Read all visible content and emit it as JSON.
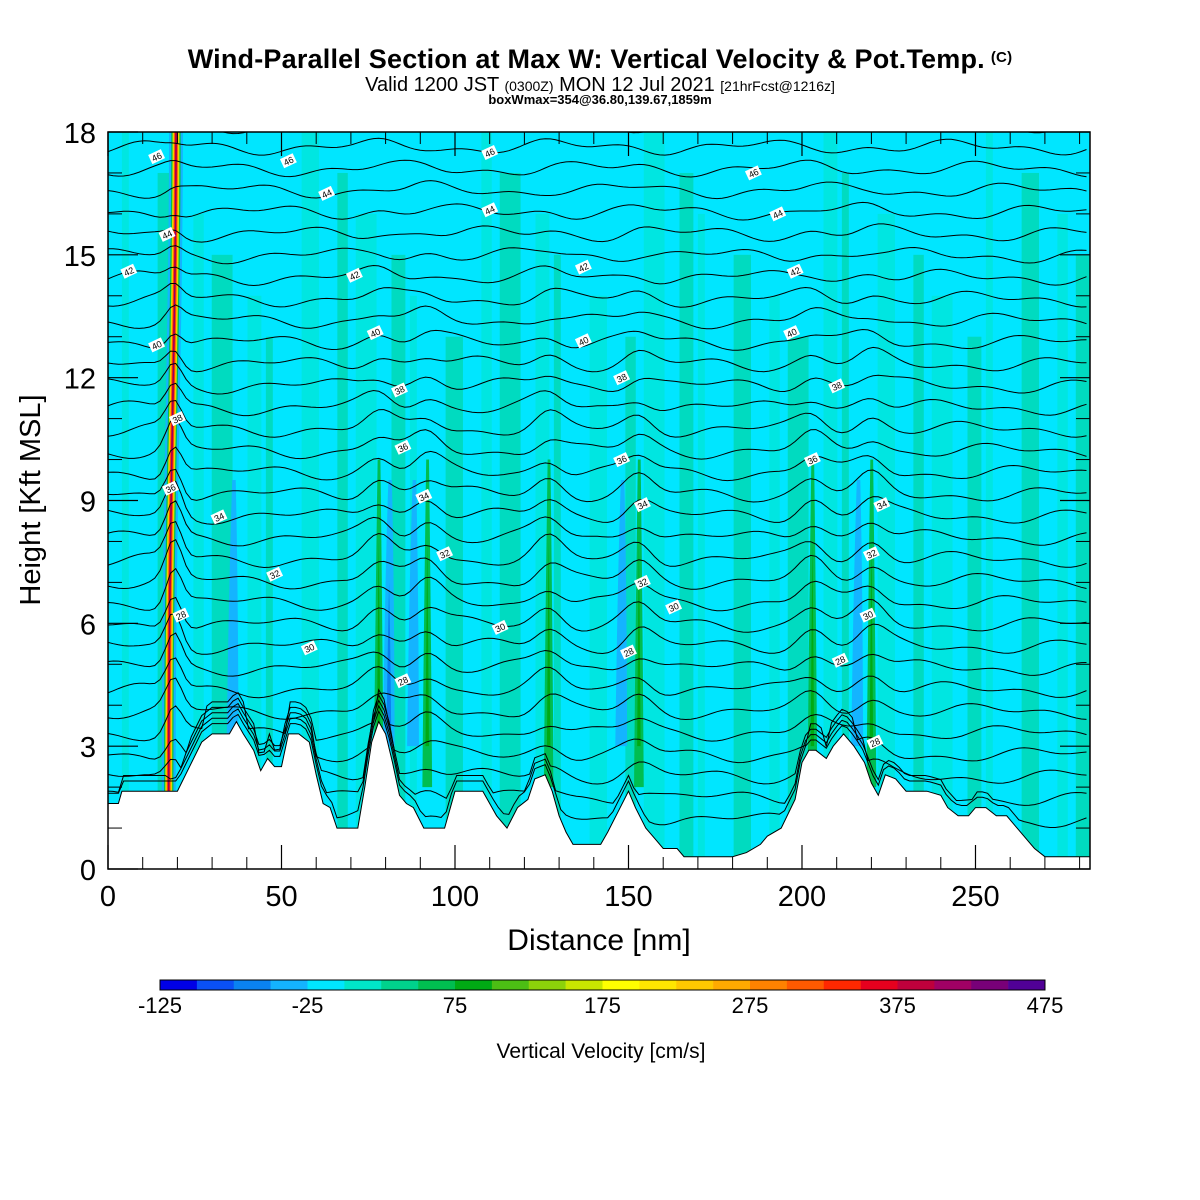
{
  "title": {
    "main": "Wind-Parallel Section at Max W: Vertical Velocity & Pot.Temp.",
    "copyright": "(C)",
    "valid_prefix": "Valid 1200 JST",
    "utc": "(0300Z)",
    "valid_date": "MON 12 Jul 2021",
    "forecast": "[21hrFcst@1216z]",
    "box": "boxWmax=354@36.80,139.67,1859m"
  },
  "chart_data": {
    "type": "heatmap",
    "xlabel": "Distance [nm]",
    "ylabel": "Height [Kft MSL]",
    "xlim": [
      0,
      283
    ],
    "ylim": [
      0,
      18
    ],
    "x_ticks": [
      0,
      50,
      100,
      150,
      200,
      250
    ],
    "y_ticks": [
      0,
      3,
      6,
      9,
      12,
      15,
      18
    ],
    "colorbar": {
      "label": "Vertical Velocity [cm/s]",
      "tick_labels": [
        "-125",
        "-25",
        "75",
        "175",
        "275",
        "375",
        "475"
      ],
      "colors": [
        "#0000e6",
        "#0a50f5",
        "#0a82f0",
        "#14b4ff",
        "#00e6ff",
        "#00e6c8",
        "#00d28c",
        "#00be50",
        "#00aa14",
        "#4cbe14",
        "#8cd20a",
        "#c8e600",
        "#ffff00",
        "#ffe600",
        "#ffc800",
        "#ffaa00",
        "#ff8200",
        "#ff5a00",
        "#ff2800",
        "#e6001e",
        "#be003c",
        "#a00064",
        "#780078",
        "#500096"
      ]
    },
    "terrain_kft": [
      [
        0,
        1.6
      ],
      [
        3,
        1.6
      ],
      [
        4,
        1.9
      ],
      [
        16,
        1.9
      ],
      [
        18,
        1.9
      ],
      [
        20,
        1.9
      ],
      [
        27,
        3.1
      ],
      [
        30,
        3.3
      ],
      [
        35,
        3.3
      ],
      [
        37,
        3.6
      ],
      [
        39,
        3.3
      ],
      [
        42,
        2.9
      ],
      [
        44,
        2.4
      ],
      [
        46,
        2.7
      ],
      [
        48,
        2.5
      ],
      [
        50,
        2.5
      ],
      [
        52,
        3.3
      ],
      [
        55,
        3.3
      ],
      [
        58,
        3.1
      ],
      [
        60,
        2.3
      ],
      [
        62,
        1.6
      ],
      [
        64,
        1.5
      ],
      [
        66,
        1.0
      ],
      [
        72,
        1.0
      ],
      [
        74,
        2.0
      ],
      [
        76,
        3.1
      ],
      [
        78,
        3.6
      ],
      [
        80,
        3.3
      ],
      [
        82,
        2.6
      ],
      [
        84,
        1.8
      ],
      [
        86,
        1.6
      ],
      [
        88,
        1.5
      ],
      [
        91,
        1.0
      ],
      [
        97,
        1.0
      ],
      [
        100,
        1.9
      ],
      [
        108,
        1.9
      ],
      [
        112,
        1.3
      ],
      [
        115,
        1.0
      ],
      [
        118,
        1.5
      ],
      [
        121,
        1.7
      ],
      [
        123,
        2.2
      ],
      [
        126,
        2.3
      ],
      [
        128,
        1.9
      ],
      [
        130,
        1.3
      ],
      [
        132,
        0.9
      ],
      [
        134,
        0.6
      ],
      [
        142,
        0.6
      ],
      [
        144,
        0.9
      ],
      [
        147,
        1.4
      ],
      [
        150,
        1.9
      ],
      [
        152,
        1.5
      ],
      [
        155,
        1.0
      ],
      [
        158,
        0.7
      ],
      [
        160,
        0.5
      ],
      [
        164,
        0.5
      ],
      [
        166,
        0.3
      ],
      [
        174,
        0.3
      ],
      [
        180,
        0.3
      ],
      [
        184,
        0.4
      ],
      [
        188,
        0.6
      ],
      [
        190,
        0.8
      ],
      [
        194,
        1.0
      ],
      [
        198,
        1.7
      ],
      [
        200,
        2.6
      ],
      [
        202,
        2.9
      ],
      [
        204,
        2.9
      ],
      [
        207,
        2.7
      ],
      [
        209,
        3.0
      ],
      [
        212,
        3.3
      ],
      [
        215,
        3.0
      ],
      [
        218,
        2.6
      ],
      [
        220,
        2.1
      ],
      [
        222,
        1.8
      ],
      [
        224,
        2.3
      ],
      [
        227,
        2.2
      ],
      [
        230,
        1.9
      ],
      [
        236,
        1.9
      ],
      [
        240,
        1.8
      ],
      [
        242,
        1.5
      ],
      [
        245,
        1.3
      ],
      [
        248,
        1.3
      ],
      [
        250,
        1.5
      ],
      [
        253,
        1.5
      ],
      [
        256,
        1.3
      ],
      [
        259,
        1.3
      ],
      [
        262,
        1.0
      ],
      [
        265,
        0.7
      ],
      [
        267,
        0.5
      ],
      [
        270,
        0.3
      ],
      [
        283,
        0.3
      ]
    ],
    "updrafts": [
      {
        "x": 19,
        "w_max": 354,
        "x_base_top": [
          17,
          20
        ]
      },
      {
        "x": 78,
        "w_max": 120
      },
      {
        "x": 92,
        "w_max": 110
      },
      {
        "x": 127,
        "w_max": 120
      },
      {
        "x": 153,
        "w_max": 95
      },
      {
        "x": 203,
        "w_max": 110
      },
      {
        "x": 220,
        "w_max": 120
      }
    ],
    "downdrafts": [
      {
        "x": 36,
        "w_min": -55
      },
      {
        "x": 81,
        "w_min": -75
      },
      {
        "x": 88,
        "w_min": -45
      },
      {
        "x": 148,
        "w_min": -60
      },
      {
        "x": 216,
        "w_min": -45
      }
    ],
    "theta_contour_labels": [
      {
        "value": "46",
        "x": 14,
        "y": 17.4
      },
      {
        "value": "46",
        "x": 52,
        "y": 17.3
      },
      {
        "value": "46",
        "x": 110,
        "y": 17.5
      },
      {
        "value": "46",
        "x": 186,
        "y": 17.0
      },
      {
        "value": "44",
        "x": 63,
        "y": 16.5
      },
      {
        "value": "44",
        "x": 110,
        "y": 16.1
      },
      {
        "value": "44",
        "x": 193,
        "y": 16.0
      },
      {
        "value": "44",
        "x": 17,
        "y": 15.5
      },
      {
        "value": "42",
        "x": 6,
        "y": 14.6
      },
      {
        "value": "42",
        "x": 71,
        "y": 14.5
      },
      {
        "value": "42",
        "x": 137,
        "y": 14.7
      },
      {
        "value": "42",
        "x": 198,
        "y": 14.6
      },
      {
        "value": "40",
        "x": 14,
        "y": 12.8
      },
      {
        "value": "40",
        "x": 77,
        "y": 13.1
      },
      {
        "value": "40",
        "x": 137,
        "y": 12.9
      },
      {
        "value": "40",
        "x": 197,
        "y": 13.1
      },
      {
        "value": "38",
        "x": 84,
        "y": 11.7
      },
      {
        "value": "38",
        "x": 148,
        "y": 12.0
      },
      {
        "value": "38",
        "x": 210,
        "y": 11.8
      },
      {
        "value": "38",
        "x": 20,
        "y": 11.0
      },
      {
        "value": "36",
        "x": 85,
        "y": 10.3
      },
      {
        "value": "36",
        "x": 148,
        "y": 10.0
      },
      {
        "value": "36",
        "x": 203,
        "y": 10.0
      },
      {
        "value": "36",
        "x": 18,
        "y": 9.3
      },
      {
        "value": "34",
        "x": 91,
        "y": 9.1
      },
      {
        "value": "34",
        "x": 154,
        "y": 8.9
      },
      {
        "value": "34",
        "x": 223,
        "y": 8.9
      },
      {
        "value": "34",
        "x": 32,
        "y": 8.6
      },
      {
        "value": "32",
        "x": 97,
        "y": 7.7
      },
      {
        "value": "32",
        "x": 220,
        "y": 7.7
      },
      {
        "value": "32",
        "x": 48,
        "y": 7.2
      },
      {
        "value": "32",
        "x": 154,
        "y": 7.0
      },
      {
        "value": "30",
        "x": 163,
        "y": 6.4
      },
      {
        "value": "30",
        "x": 113,
        "y": 5.9
      },
      {
        "value": "30",
        "x": 58,
        "y": 5.4
      },
      {
        "value": "30",
        "x": 219,
        "y": 6.2
      },
      {
        "value": "28",
        "x": 21,
        "y": 6.2
      },
      {
        "value": "28",
        "x": 150,
        "y": 5.3
      },
      {
        "value": "28",
        "x": 211,
        "y": 5.1
      },
      {
        "value": "28",
        "x": 85,
        "y": 4.6
      },
      {
        "value": "28",
        "x": 221,
        "y": 3.1
      }
    ]
  }
}
